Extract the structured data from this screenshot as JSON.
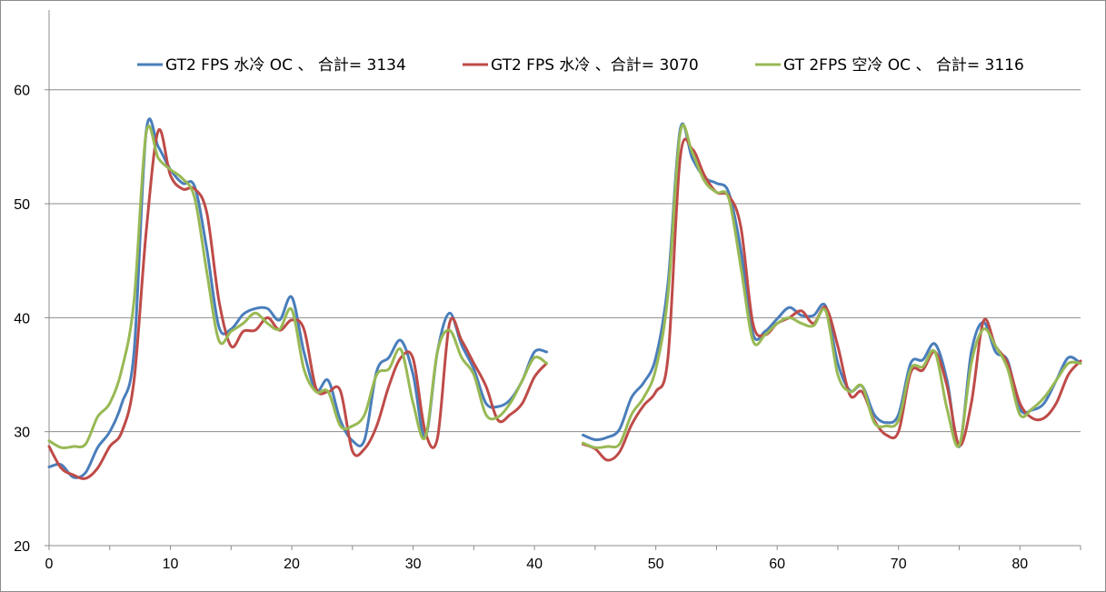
{
  "chart_data": {
    "type": "line",
    "title": "",
    "xlabel": "",
    "ylabel": "",
    "xlim": [
      0,
      85
    ],
    "ylim": [
      20,
      67
    ],
    "x_ticks": [
      0,
      10,
      20,
      30,
      40,
      50,
      60,
      70,
      80
    ],
    "y_ticks": [
      20,
      30,
      40,
      50,
      60
    ],
    "grid": "horizontal",
    "legend_position": "top",
    "series": [
      {
        "name": "GT2 FPS 水冷 OC 、 合計= 3134",
        "color": "#4a7ebb",
        "segments": [
          [
            [
              0,
              26.9
            ],
            [
              1,
              27.1
            ],
            [
              2,
              26.0
            ],
            [
              3,
              26.4
            ],
            [
              4,
              28.6
            ],
            [
              5,
              30.0
            ],
            [
              6,
              32.5
            ],
            [
              7,
              37.0
            ],
            [
              8,
              56.3
            ],
            [
              9,
              55.0
            ],
            [
              10,
              53.0
            ],
            [
              11,
              51.8
            ],
            [
              12,
              51.5
            ],
            [
              13,
              46.0
            ],
            [
              14,
              39.2
            ],
            [
              15,
              39.0
            ],
            [
              16,
              40.3
            ],
            [
              17,
              40.8
            ],
            [
              18,
              40.8
            ],
            [
              19,
              39.8
            ],
            [
              20,
              41.8
            ],
            [
              21,
              37.0
            ],
            [
              22,
              33.6
            ],
            [
              23,
              34.5
            ],
            [
              24,
              31.0
            ],
            [
              25,
              29.2
            ],
            [
              26,
              29.3
            ],
            [
              27,
              35.3
            ],
            [
              28,
              36.5
            ],
            [
              29,
              38.0
            ],
            [
              30,
              35.0
            ],
            [
              31,
              29.5
            ],
            [
              32,
              37.0
            ],
            [
              33,
              40.4
            ],
            [
              34,
              37.6
            ],
            [
              35,
              35.5
            ],
            [
              36,
              32.5
            ],
            [
              37,
              32.2
            ],
            [
              38,
              32.8
            ],
            [
              39,
              34.5
            ],
            [
              40,
              37.0
            ],
            [
              41,
              37.0
            ]
          ],
          [
            [
              44,
              29.7
            ],
            [
              45,
              29.3
            ],
            [
              46,
              29.5
            ],
            [
              47,
              30.2
            ],
            [
              48,
              33.0
            ],
            [
              49,
              34.3
            ],
            [
              50,
              36.5
            ],
            [
              51,
              43.0
            ],
            [
              52,
              56.5
            ],
            [
              53,
              54.0
            ],
            [
              54,
              52.3
            ],
            [
              55,
              51.8
            ],
            [
              56,
              51.0
            ],
            [
              57,
              46.0
            ],
            [
              58,
              38.6
            ],
            [
              59,
              38.8
            ],
            [
              60,
              39.9
            ],
            [
              61,
              40.9
            ],
            [
              62,
              40.2
            ],
            [
              63,
              40.2
            ],
            [
              64,
              41.0
            ],
            [
              65,
              36.0
            ],
            [
              66,
              33.6
            ],
            [
              67,
              34.0
            ],
            [
              68,
              31.5
            ],
            [
              69,
              30.8
            ],
            [
              70,
              31.5
            ],
            [
              71,
              36.0
            ],
            [
              72,
              36.3
            ],
            [
              73,
              37.7
            ],
            [
              74,
              34.5
            ],
            [
              75,
              28.7
            ],
            [
              76,
              37.0
            ],
            [
              77,
              39.6
            ],
            [
              78,
              37.0
            ],
            [
              79,
              36.2
            ],
            [
              80,
              32.0
            ],
            [
              81,
              31.9
            ],
            [
              82,
              32.5
            ],
            [
              83,
              34.5
            ],
            [
              84,
              36.5
            ],
            [
              85,
              36.0
            ]
          ]
        ]
      },
      {
        "name": "GT2 FPS 水冷 、合計= 3070",
        "color": "#be4b48",
        "segments": [
          [
            [
              0,
              28.7
            ],
            [
              1,
              26.8
            ],
            [
              2,
              26.2
            ],
            [
              3,
              25.9
            ],
            [
              4,
              26.8
            ],
            [
              5,
              28.7
            ],
            [
              6,
              30.0
            ],
            [
              7,
              34.5
            ],
            [
              8,
              47.5
            ],
            [
              9,
              56.4
            ],
            [
              10,
              52.5
            ],
            [
              11,
              51.3
            ],
            [
              12,
              51.3
            ],
            [
              13,
              49.2
            ],
            [
              14,
              41.5
            ],
            [
              15,
              37.5
            ],
            [
              16,
              38.8
            ],
            [
              17,
              38.9
            ],
            [
              18,
              40.0
            ],
            [
              19,
              38.9
            ],
            [
              20,
              39.8
            ],
            [
              21,
              39.0
            ],
            [
              22,
              33.8
            ],
            [
              23,
              33.5
            ],
            [
              24,
              33.6
            ],
            [
              25,
              28.3
            ],
            [
              26,
              28.5
            ],
            [
              27,
              30.5
            ],
            [
              28,
              34.0
            ],
            [
              29,
              36.5
            ],
            [
              30,
              36.4
            ],
            [
              31,
              30.0
            ],
            [
              32,
              29.4
            ],
            [
              33,
              39.5
            ],
            [
              34,
              38.0
            ],
            [
              35,
              36.0
            ],
            [
              36,
              34.0
            ],
            [
              37,
              31.0
            ],
            [
              38,
              31.5
            ],
            [
              39,
              32.5
            ],
            [
              40,
              34.8
            ],
            [
              41,
              36.0
            ]
          ],
          [
            [
              44,
              28.9
            ],
            [
              45,
              28.5
            ],
            [
              46,
              27.5
            ],
            [
              47,
              28.2
            ],
            [
              48,
              30.6
            ],
            [
              49,
              32.3
            ],
            [
              50,
              33.5
            ],
            [
              51,
              36.5
            ],
            [
              52,
              54.0
            ],
            [
              53,
              54.8
            ],
            [
              54,
              52.5
            ],
            [
              55,
              51.0
            ],
            [
              56,
              50.7
            ],
            [
              57,
              48.0
            ],
            [
              58,
              39.5
            ],
            [
              59,
              38.5
            ],
            [
              60,
              39.5
            ],
            [
              61,
              40.0
            ],
            [
              62,
              40.6
            ],
            [
              63,
              39.5
            ],
            [
              64,
              40.9
            ],
            [
              65,
              37.5
            ],
            [
              66,
              33.2
            ],
            [
              67,
              33.5
            ],
            [
              68,
              31.0
            ],
            [
              69,
              29.7
            ],
            [
              70,
              30.0
            ],
            [
              71,
              35.2
            ],
            [
              72,
              35.4
            ],
            [
              73,
              37.0
            ],
            [
              74,
              34.0
            ],
            [
              75,
              28.8
            ],
            [
              76,
              32.5
            ],
            [
              77,
              39.7
            ],
            [
              78,
              37.5
            ],
            [
              79,
              36.0
            ],
            [
              80,
              32.5
            ],
            [
              81,
              31.2
            ],
            [
              82,
              31.2
            ],
            [
              83,
              32.5
            ],
            [
              84,
              35.0
            ],
            [
              85,
              36.2
            ]
          ]
        ]
      },
      {
        "name": "GT 2FPS 空冷 OC 、 合計= 3116",
        "color": "#98b954",
        "segments": [
          [
            [
              0,
              29.2
            ],
            [
              1,
              28.6
            ],
            [
              2,
              28.7
            ],
            [
              3,
              28.9
            ],
            [
              4,
              31.3
            ],
            [
              5,
              32.5
            ],
            [
              6,
              35.5
            ],
            [
              7,
              41.5
            ],
            [
              8,
              56.2
            ],
            [
              9,
              54.0
            ],
            [
              10,
              53.0
            ],
            [
              11,
              52.2
            ],
            [
              12,
              50.5
            ],
            [
              13,
              44.0
            ],
            [
              14,
              38.0
            ],
            [
              15,
              38.8
            ],
            [
              16,
              39.5
            ],
            [
              17,
              40.4
            ],
            [
              18,
              39.5
            ],
            [
              19,
              39.0
            ],
            [
              20,
              40.7
            ],
            [
              21,
              35.5
            ],
            [
              22,
              33.5
            ],
            [
              23,
              33.5
            ],
            [
              24,
              30.5
            ],
            [
              25,
              30.5
            ],
            [
              26,
              31.5
            ],
            [
              27,
              35.0
            ],
            [
              28,
              35.5
            ],
            [
              29,
              37.2
            ],
            [
              30,
              32.5
            ],
            [
              31,
              29.5
            ],
            [
              32,
              37.0
            ],
            [
              33,
              38.9
            ],
            [
              34,
              36.5
            ],
            [
              35,
              35.0
            ],
            [
              36,
              31.5
            ],
            [
              37,
              31.3
            ],
            [
              38,
              32.5
            ],
            [
              39,
              34.5
            ],
            [
              40,
              36.5
            ],
            [
              41,
              36.0
            ]
          ],
          [
            [
              44,
              29.0
            ],
            [
              45,
              28.6
            ],
            [
              46,
              28.7
            ],
            [
              47,
              28.9
            ],
            [
              48,
              31.5
            ],
            [
              49,
              33.0
            ],
            [
              50,
              35.5
            ],
            [
              51,
              42.0
            ],
            [
              52,
              56.2
            ],
            [
              53,
              54.5
            ],
            [
              54,
              52.0
            ],
            [
              55,
              51.0
            ],
            [
              56,
              50.5
            ],
            [
              57,
              44.5
            ],
            [
              58,
              38.0
            ],
            [
              59,
              38.5
            ],
            [
              60,
              39.5
            ],
            [
              61,
              40.0
            ],
            [
              62,
              39.5
            ],
            [
              63,
              39.3
            ],
            [
              64,
              40.6
            ],
            [
              65,
              35.0
            ],
            [
              66,
              33.5
            ],
            [
              67,
              34.0
            ],
            [
              68,
              30.8
            ],
            [
              69,
              30.5
            ],
            [
              70,
              31.0
            ],
            [
              71,
              35.5
            ],
            [
              72,
              35.7
            ],
            [
              73,
              37.0
            ],
            [
              74,
              32.0
            ],
            [
              75,
              28.8
            ],
            [
              76,
              36.0
            ],
            [
              77,
              39.0
            ],
            [
              78,
              37.5
            ],
            [
              79,
              35.5
            ],
            [
              80,
              31.5
            ],
            [
              81,
              32.0
            ],
            [
              82,
              33.0
            ],
            [
              83,
              34.5
            ],
            [
              84,
              36.0
            ],
            [
              85,
              36.0
            ]
          ]
        ]
      }
    ]
  }
}
